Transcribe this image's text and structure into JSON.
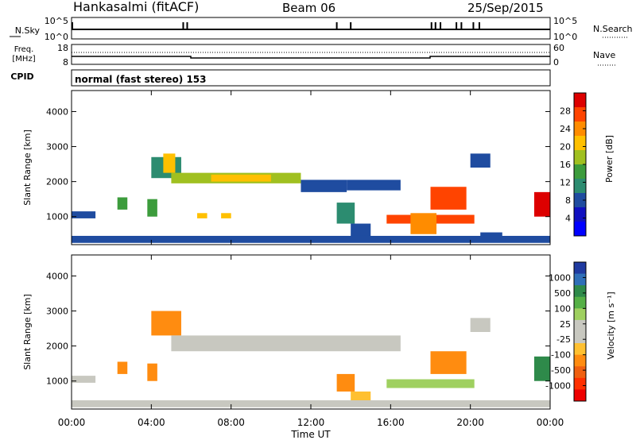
{
  "header": {
    "station": "Hankasalmi (fitACF)",
    "beam": "Beam 06",
    "date": "25/Sep/2015"
  },
  "nsky_panel": {
    "left_label": "N.Sky",
    "right_label": "N.Search",
    "tick_top": "10^5",
    "tick_bottom": "10^0",
    "spikes_hours": [
      0.04,
      5.6,
      5.8,
      13.3,
      14.0,
      18.05,
      18.25,
      18.5,
      19.3,
      19.55,
      20.15,
      20.45
    ]
  },
  "freq_panel": {
    "label_line1": "Freq.",
    "label_line2": "[MHz]",
    "right_label": "Nave",
    "left_ticks": [
      "18",
      "8"
    ],
    "right_ticks": [
      "60",
      "0"
    ]
  },
  "cpid_panel": {
    "label": "CPID",
    "text": "normal (fast stereo) 153"
  },
  "power_panel": {
    "ylabel": "Slant Range [km]",
    "cbar_label": "Power [dB]",
    "cbar_ticks": [
      "28",
      "24",
      "20",
      "16",
      "12",
      "8",
      "4"
    ],
    "cbar_colors": [
      "#dd0000",
      "#ff4400",
      "#ff8c00",
      "#ffc000",
      "#a0c020",
      "#3c9c3c",
      "#2c8c70",
      "#1f4ca0",
      "#1010c0",
      "#0000ff"
    ]
  },
  "velocity_panel": {
    "ylabel": "Slant Range [km]",
    "cbar_label": "Velocity [m s⁻¹]",
    "cbar_ticks": [
      "1000",
      "500",
      "100",
      "25",
      "-25",
      "-100",
      "-500",
      "-1000"
    ],
    "cbar_colors": [
      "#1f3aa0",
      "#2f6fb8",
      "#2e8a4a",
      "#55b046",
      "#9fd060",
      "#c8c8c0",
      "#c8c8c0",
      "#ffc030",
      "#ff8c10",
      "#f06010",
      "#ff3000",
      "#ee0000"
    ]
  },
  "x_axis": {
    "label": "Time UT",
    "ticks": [
      "00:00",
      "04:00",
      "08:00",
      "12:00",
      "16:00",
      "20:00",
      "00:00"
    ]
  },
  "chart_data": {
    "type": "heatmap",
    "x_range_hours": [
      0,
      24
    ],
    "y_range_km": [
      200,
      4600
    ],
    "y_ticks_km": [
      1000,
      2000,
      3000,
      4000
    ],
    "power_regions": [
      {
        "t": [
          0.0,
          1.2
        ],
        "r": [
          950,
          1150
        ],
        "color": "#1f4ca0"
      },
      {
        "t": [
          2.3,
          2.8
        ],
        "r": [
          1200,
          1550
        ],
        "color": "#3c9c3c"
      },
      {
        "t": [
          3.8,
          4.3
        ],
        "r": [
          1000,
          1500
        ],
        "color": "#3c9c3c"
      },
      {
        "t": [
          4.0,
          5.5
        ],
        "r": [
          2100,
          2700
        ],
        "color": "#2c8c70"
      },
      {
        "t": [
          4.6,
          5.2
        ],
        "r": [
          2250,
          2800
        ],
        "color": "#ffc000"
      },
      {
        "t": [
          5.0,
          11.5
        ],
        "r": [
          1950,
          2250
        ],
        "color": "#a0c020"
      },
      {
        "t": [
          7.0,
          10.0
        ],
        "r": [
          2000,
          2200
        ],
        "color": "#ffc000"
      },
      {
        "t": [
          11.5,
          13.8
        ],
        "r": [
          1700,
          2050
        ],
        "color": "#1f4ca0"
      },
      {
        "t": [
          13.8,
          16.5
        ],
        "r": [
          1750,
          2050
        ],
        "color": "#1f4ca0"
      },
      {
        "t": [
          6.3,
          6.8
        ],
        "r": [
          950,
          1100
        ],
        "color": "#ffc000"
      },
      {
        "t": [
          7.5,
          8.0
        ],
        "r": [
          950,
          1100
        ],
        "color": "#ffc000"
      },
      {
        "t": [
          13.3,
          14.2
        ],
        "r": [
          800,
          1400
        ],
        "color": "#2c8c70"
      },
      {
        "t": [
          14.0,
          15.0
        ],
        "r": [
          400,
          800
        ],
        "color": "#1f4ca0"
      },
      {
        "t": [
          15.8,
          20.2
        ],
        "r": [
          800,
          1050
        ],
        "color": "#ff4400"
      },
      {
        "t": [
          17.0,
          18.3
        ],
        "r": [
          500,
          1100
        ],
        "color": "#ff8c00"
      },
      {
        "t": [
          18.0,
          19.8
        ],
        "r": [
          1200,
          1850
        ],
        "color": "#ff4400"
      },
      {
        "t": [
          20.0,
          21.0
        ],
        "r": [
          2400,
          2800
        ],
        "color": "#1f4ca0"
      },
      {
        "t": [
          20.5,
          21.6
        ],
        "r": [
          300,
          550
        ],
        "color": "#1f4ca0"
      },
      {
        "t": [
          23.2,
          24.0
        ],
        "r": [
          1000,
          1700
        ],
        "color": "#dd0000"
      },
      {
        "t": [
          0.0,
          24.0
        ],
        "r": [
          250,
          450
        ],
        "color": "#1f4ca0"
      }
    ],
    "velocity_regions": [
      {
        "t": [
          0.0,
          1.2
        ],
        "r": [
          950,
          1150
        ],
        "color": "#c8c8c0"
      },
      {
        "t": [
          2.3,
          2.8
        ],
        "r": [
          1200,
          1550
        ],
        "color": "#ff8c10"
      },
      {
        "t": [
          3.8,
          4.3
        ],
        "r": [
          1000,
          1500
        ],
        "color": "#ff8c10"
      },
      {
        "t": [
          4.0,
          5.5
        ],
        "r": [
          2300,
          3000
        ],
        "color": "#ff8c10"
      },
      {
        "t": [
          5.0,
          16.5
        ],
        "r": [
          1850,
          2300
        ],
        "color": "#c8c8c0"
      },
      {
        "t": [
          13.3,
          14.2
        ],
        "r": [
          700,
          1200
        ],
        "color": "#ff8c10"
      },
      {
        "t": [
          14.0,
          15.0
        ],
        "r": [
          400,
          700
        ],
        "color": "#ffc030"
      },
      {
        "t": [
          15.8,
          20.2
        ],
        "r": [
          800,
          1050
        ],
        "color": "#9fd060"
      },
      {
        "t": [
          18.0,
          19.8
        ],
        "r": [
          1200,
          1850
        ],
        "color": "#ff8c10"
      },
      {
        "t": [
          20.0,
          21.0
        ],
        "r": [
          2400,
          2800
        ],
        "color": "#c8c8c0"
      },
      {
        "t": [
          23.2,
          24.0
        ],
        "r": [
          1000,
          1700
        ],
        "color": "#2e8a4a"
      },
      {
        "t": [
          0.0,
          24.0
        ],
        "r": [
          250,
          450
        ],
        "color": "#c8c8c0"
      }
    ]
  }
}
